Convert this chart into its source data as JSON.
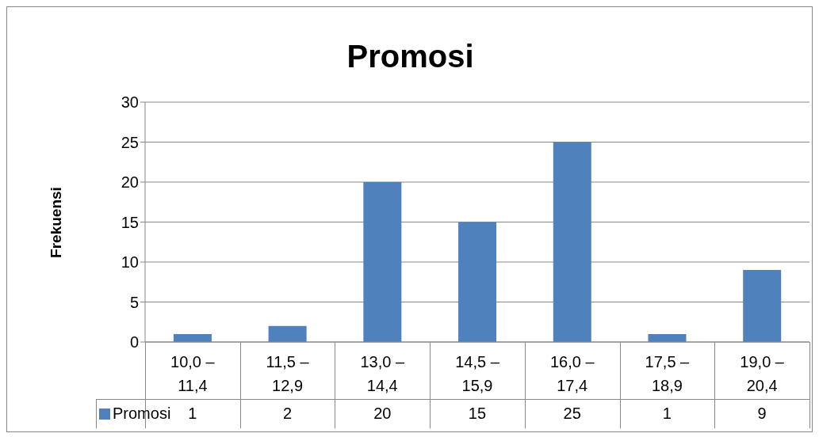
{
  "chart_data": {
    "type": "bar",
    "title": "Promosi",
    "ylabel": "Frekuensi",
    "categories": [
      "10,0 – 11,4",
      "11,5 – 12,9",
      "13,0 – 14,4",
      "14,5 – 15,9",
      "16,0 – 17,4",
      "17,5 – 18,9",
      "19,0 – 20,4"
    ],
    "series": [
      {
        "name": "Promosi",
        "color": "#4f81bd",
        "values": [
          1,
          2,
          20,
          15,
          25,
          1,
          9
        ]
      }
    ],
    "ylim": [
      0,
      30
    ],
    "yticks": [
      0,
      5,
      10,
      15,
      20,
      25,
      30
    ],
    "grid": "y",
    "legend": "bottom",
    "data_labels": true
  }
}
